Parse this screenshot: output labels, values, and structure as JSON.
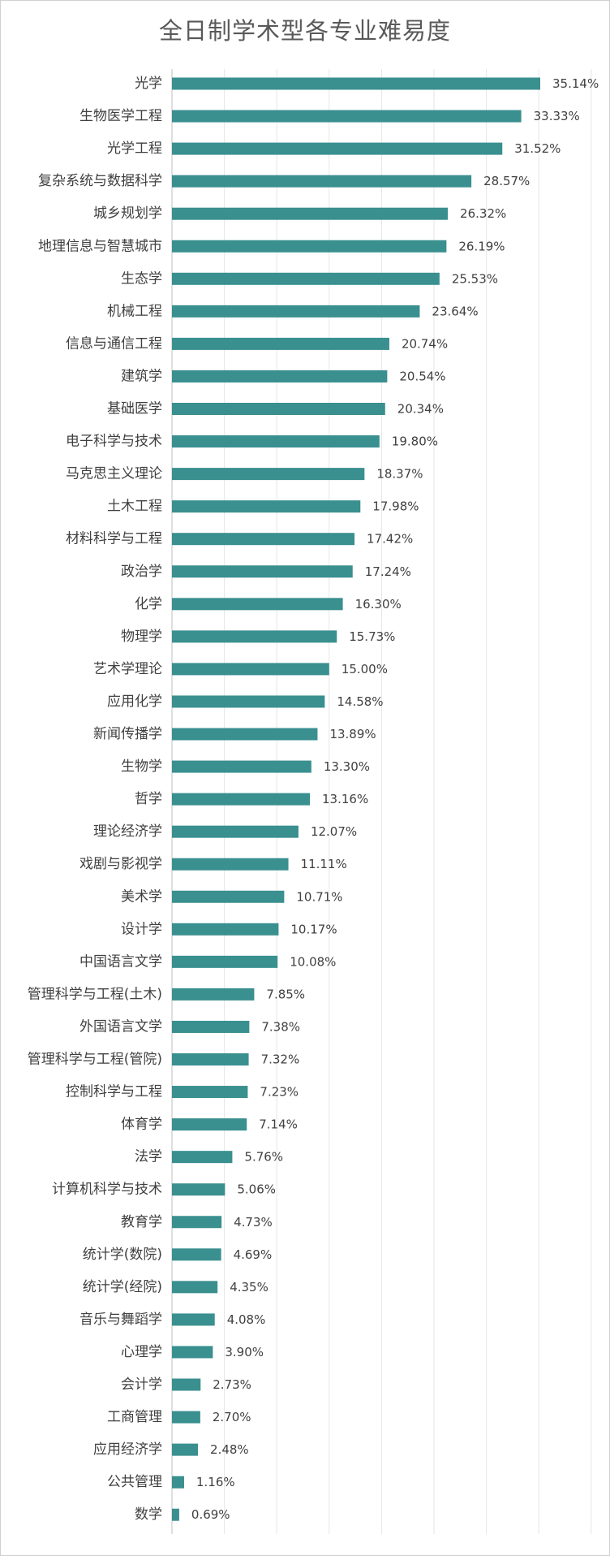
{
  "chart_data": {
    "type": "bar",
    "orientation": "horizontal",
    "title": "全日制学术型各专业难易度",
    "xlim": [
      0,
      40
    ],
    "grid": true,
    "bar_color": "#3a8f8f",
    "value_format": "percent",
    "categories": [
      "光学",
      "生物医学工程",
      "光学工程",
      "复杂系统与数据科学",
      "城乡规划学",
      "地理信息与智慧城市",
      "生态学",
      "机械工程",
      "信息与通信工程",
      "建筑学",
      "基础医学",
      "电子科学与技术",
      "马克思主义理论",
      "土木工程",
      "材料科学与工程",
      "政治学",
      "化学",
      "物理学",
      "艺术学理论",
      "应用化学",
      "新闻传播学",
      "生物学",
      "哲学",
      "理论经济学",
      "戏剧与影视学",
      "美术学",
      "设计学",
      "中国语言文学",
      "管理科学与工程(土木)",
      "外国语言文学",
      "管理科学与工程(管院)",
      "控制科学与工程",
      "体育学",
      "法学",
      "计算机科学与技术",
      "教育学",
      "统计学(数院)",
      "统计学(经院)",
      "音乐与舞蹈学",
      "心理学",
      "会计学",
      "工商管理",
      "应用经济学",
      "公共管理",
      "数学"
    ],
    "values": [
      35.14,
      33.33,
      31.52,
      28.57,
      26.32,
      26.19,
      25.53,
      23.64,
      20.74,
      20.54,
      20.34,
      19.8,
      18.37,
      17.98,
      17.42,
      17.24,
      16.3,
      15.73,
      15.0,
      14.58,
      13.89,
      13.3,
      13.16,
      12.07,
      11.11,
      10.71,
      10.17,
      10.08,
      7.85,
      7.38,
      7.32,
      7.23,
      7.14,
      5.76,
      5.06,
      4.73,
      4.69,
      4.35,
      4.08,
      3.9,
      2.73,
      2.7,
      2.48,
      1.16,
      0.69
    ]
  }
}
